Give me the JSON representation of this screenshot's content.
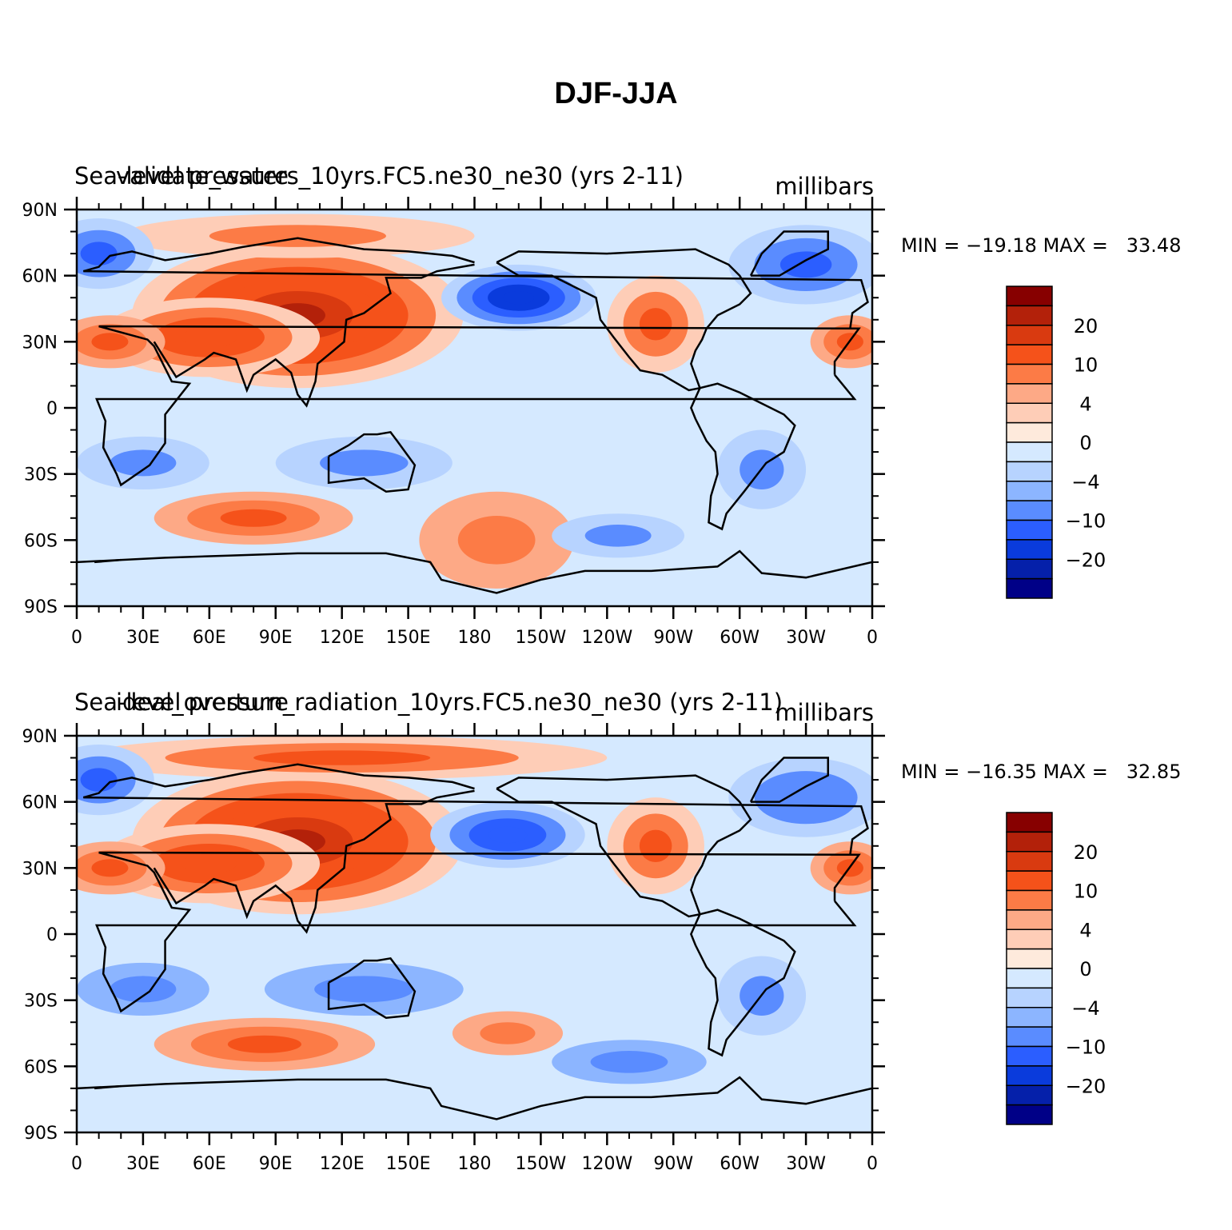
{
  "title": "DJF-JJA",
  "latitude_labels": [
    "90N",
    "60N",
    "30N",
    "0",
    "30S",
    "60S",
    "90S"
  ],
  "longitude_labels": [
    "0",
    "30E",
    "60E",
    "90E",
    "120E",
    "150E",
    "180",
    "150W",
    "120W",
    "90W",
    "60W",
    "30W",
    "0"
  ],
  "colorbar": {
    "colors": [
      "#870000",
      "#b3210a",
      "#d93a10",
      "#f5521a",
      "#fc7b46",
      "#fda986",
      "#fecdb7",
      "#feeadc",
      "#d5e9ff",
      "#b7d3ff",
      "#8cb5ff",
      "#5a8cff",
      "#2b5eff",
      "#0a3bdc",
      "#0520aa",
      "#000087"
    ],
    "labels": [
      "20",
      "10",
      "4",
      "0",
      "−4",
      "−10",
      "−20"
    ]
  },
  "panels": [
    {
      "left_label": "Sea-level pressure",
      "center_label": "validate_waters_10yrs.FC5.ne30_ne30 (yrs 2-11)",
      "units": "millibars",
      "min_label": "MIN = −19.18",
      "max_label": "MAX =   33.48"
    },
    {
      "left_label": "Sea-level pressure",
      "center_label": "ideal_overturn_radiation_10yrs.FC5.ne30_ne30 (yrs 2-11)",
      "units": "millibars",
      "min_label": "MIN = −16.35",
      "max_label": "MAX =   32.85"
    }
  ],
  "map_fields": {
    "top": {
      "background": "#d5e9ff",
      "blobs": [
        {
          "lon": 100,
          "lat": 42,
          "rx": 75,
          "ry": 33,
          "value": 22
        },
        {
          "lon": 60,
          "lat": 32,
          "rx": 50,
          "ry": 18,
          "value": 14
        },
        {
          "lon": 15,
          "lat": 30,
          "rx": 25,
          "ry": 12,
          "value": 12
        },
        {
          "lon": 100,
          "lat": 78,
          "rx": 80,
          "ry": 10,
          "value": 6
        },
        {
          "lon": 200,
          "lat": 50,
          "rx": 35,
          "ry": 15,
          "value": -20
        },
        {
          "lon": 262,
          "lat": 38,
          "rx": 22,
          "ry": 22,
          "value": 10
        },
        {
          "lon": 330,
          "lat": 65,
          "rx": 35,
          "ry": 18,
          "value": -12
        },
        {
          "lon": 10,
          "lat": 70,
          "rx": 25,
          "ry": 16,
          "value": -12
        },
        {
          "lon": 350,
          "lat": 30,
          "rx": 18,
          "ry": 12,
          "value": 12
        },
        {
          "lon": 130,
          "lat": -25,
          "rx": 40,
          "ry": 12,
          "value": -8
        },
        {
          "lon": 30,
          "lat": -25,
          "rx": 30,
          "ry": 12,
          "value": -8
        },
        {
          "lon": 80,
          "lat": -50,
          "rx": 45,
          "ry": 12,
          "value": 12
        },
        {
          "lon": 190,
          "lat": -60,
          "rx": 35,
          "ry": 22,
          "value": 8
        },
        {
          "lon": 245,
          "lat": -58,
          "rx": 30,
          "ry": 10,
          "value": -8
        },
        {
          "lon": 310,
          "lat": -28,
          "rx": 20,
          "ry": 18,
          "value": -8
        }
      ]
    },
    "bottom": {
      "background": "#d5e9ff",
      "blobs": [
        {
          "lon": 100,
          "lat": 42,
          "rx": 75,
          "ry": 33,
          "value": 22
        },
        {
          "lon": 60,
          "lat": 32,
          "rx": 50,
          "ry": 18,
          "value": 14
        },
        {
          "lon": 15,
          "lat": 30,
          "rx": 25,
          "ry": 12,
          "value": 12
        },
        {
          "lon": 120,
          "lat": 80,
          "rx": 120,
          "ry": 10,
          "value": 10
        },
        {
          "lon": 195,
          "lat": 45,
          "rx": 35,
          "ry": 15,
          "value": -15
        },
        {
          "lon": 262,
          "lat": 40,
          "rx": 22,
          "ry": 22,
          "value": 10
        },
        {
          "lon": 330,
          "lat": 62,
          "rx": 35,
          "ry": 18,
          "value": -10
        },
        {
          "lon": 10,
          "lat": 70,
          "rx": 25,
          "ry": 16,
          "value": -12
        },
        {
          "lon": 350,
          "lat": 30,
          "rx": 18,
          "ry": 12,
          "value": 12
        },
        {
          "lon": 130,
          "lat": -25,
          "rx": 45,
          "ry": 12,
          "value": -9
        },
        {
          "lon": 30,
          "lat": -25,
          "rx": 30,
          "ry": 12,
          "value": -9
        },
        {
          "lon": 85,
          "lat": -50,
          "rx": 50,
          "ry": 12,
          "value": 12
        },
        {
          "lon": 195,
          "lat": -45,
          "rx": 25,
          "ry": 10,
          "value": 8
        },
        {
          "lon": 250,
          "lat": -58,
          "rx": 35,
          "ry": 10,
          "value": -9
        },
        {
          "lon": 310,
          "lat": -28,
          "rx": 20,
          "ry": 18,
          "value": -8
        }
      ]
    }
  }
}
